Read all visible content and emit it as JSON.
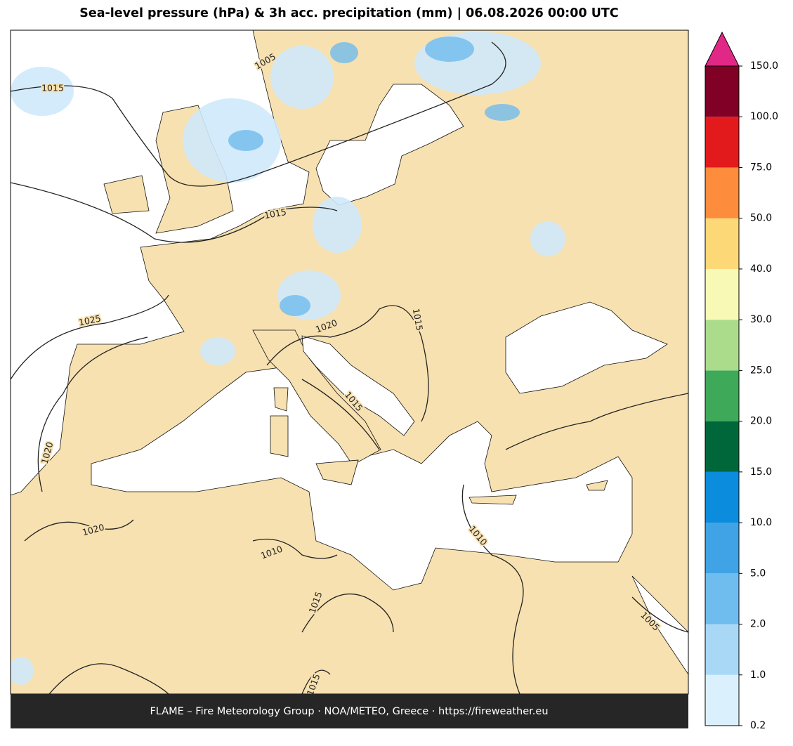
{
  "title": "Sea-level pressure (hPa) & 3h acc. precipitation (mm)  |  06.08.2026 00:00 UTC",
  "footer": "FLAME – Fire Meteorology Group · NOA/METEO, Greece · https://fireweather.eu",
  "contour_labels": [
    "1015",
    "1005",
    "1025",
    "1015",
    "1020",
    "1015",
    "1015",
    "1020",
    "1020",
    "1010",
    "1010",
    "1015",
    "1005",
    "1015"
  ],
  "colorbar": {
    "ticks": [
      0.2,
      {
        "value": 1,
        "label": "1.0"
      },
      {
        "value": 2,
        "label": "2.0"
      },
      {
        "value": 5,
        "label": "5.0"
      },
      {
        "value": 10,
        "label": "10.0"
      },
      {
        "value": 15,
        "label": "15.0"
      },
      {
        "value": 20,
        "label": "20.0"
      },
      {
        "value": 25,
        "label": "25.0"
      },
      {
        "value": 30,
        "label": "30.0"
      },
      {
        "value": 40,
        "label": "40.0"
      },
      {
        "value": 50,
        "label": "50.0"
      },
      {
        "value": 75,
        "label": "75.0"
      },
      {
        "value": 100,
        "label": "100.0"
      },
      {
        "value": 150,
        "label": "150.0"
      }
    ],
    "colors": [
      "#dbf0fd",
      "#a8d8f6",
      "#6fbcee",
      "#40a3e6",
      "#0b8cdc",
      "#00673a",
      "#3fa95a",
      "#abdc8b",
      "#f8f9b5",
      "#fdd876",
      "#fd8c3c",
      "#e31a1c",
      "#800026"
    ],
    "extend_color": "#e22886"
  }
}
